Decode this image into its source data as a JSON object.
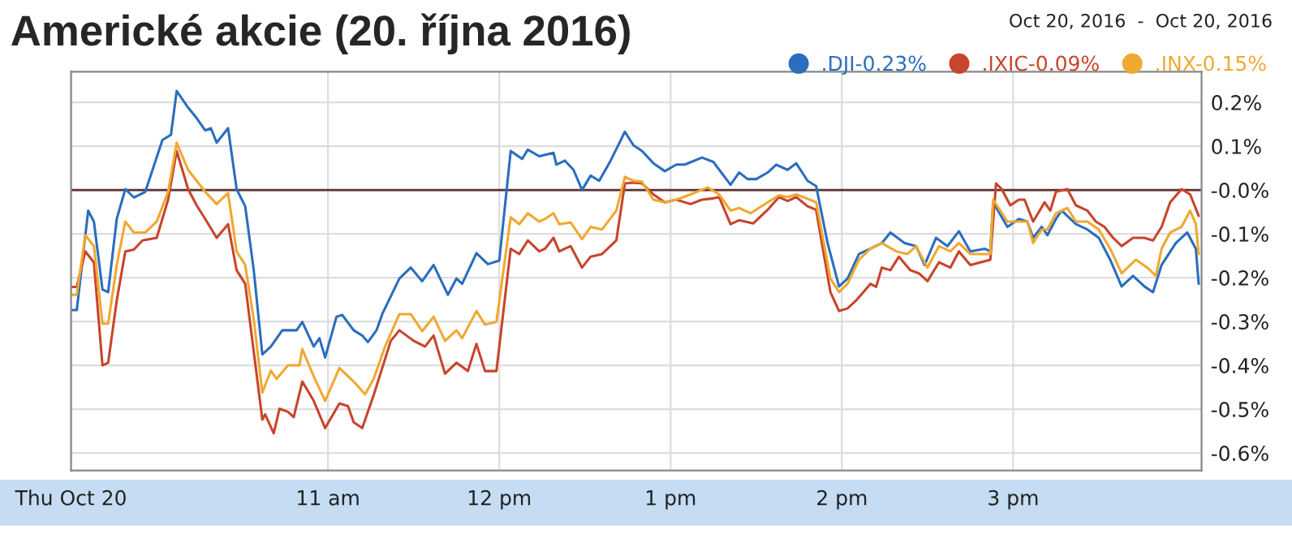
{
  "chart_data": {
    "type": "line",
    "title": "Americké akcie (20. října 2016)",
    "subtitle": "Oct 20, 2016  -  Oct 20, 2016",
    "xlim": [
      "2016-10-20T09:30",
      "2016-10-20T16:06"
    ],
    "xticks": [
      {
        "value": "2016-10-20T09:30",
        "label": "Thu Oct 20"
      },
      {
        "value": "2016-10-20T11:00",
        "label": "11 am"
      },
      {
        "value": "2016-10-20T12:00",
        "label": "12 pm"
      },
      {
        "value": "2016-10-20T13:00",
        "label": "1 pm"
      },
      {
        "value": "2016-10-20T14:00",
        "label": "2 pm"
      },
      {
        "value": "2016-10-20T15:00",
        "label": "3 pm"
      }
    ],
    "ylim": [
      -0.64,
      0.27
    ],
    "yticks": [
      {
        "value": 0.2,
        "label": "0.2%"
      },
      {
        "value": 0.1,
        "label": "0.1%"
      },
      {
        "value": 0,
        "label": "-0.0%"
      },
      {
        "value": -0.1,
        "label": "-0.1%"
      },
      {
        "value": -0.2,
        "label": "-0.2%"
      },
      {
        "value": -0.3,
        "label": "-0.3%"
      },
      {
        "value": -0.4,
        "label": "-0.4%"
      },
      {
        "value": -0.5,
        "label": "-0.5%"
      },
      {
        "value": -0.6,
        "label": "-0.6%"
      }
    ],
    "grid": true,
    "legend": "top right",
    "line_style": "solid",
    "marker": "none",
    "ref_lines": [
      {
        "axis": "y",
        "value": 0,
        "color": "#5a3030"
      }
    ],
    "series": [
      {
        "name": ".DJI-0.23%",
        "color": "#2a6ebd",
        "x": [
          "2016-10-20T09:30",
          "2016-10-20T09:32",
          "2016-10-20T09:36",
          "2016-10-20T09:38",
          "2016-10-20T09:41",
          "2016-10-20T09:43",
          "2016-10-20T09:46",
          "2016-10-20T09:49",
          "2016-10-20T09:52",
          "2016-10-20T09:56",
          "2016-10-20T10:02",
          "2016-10-20T10:05",
          "2016-10-20T10:07",
          "2016-10-20T10:11",
          "2016-10-20T10:14",
          "2016-10-20T10:17",
          "2016-10-20T10:19",
          "2016-10-20T10:21",
          "2016-10-20T10:25",
          "2016-10-20T10:28",
          "2016-10-20T10:31",
          "2016-10-20T10:34",
          "2016-10-20T10:37",
          "2016-10-20T10:40",
          "2016-10-20T10:44",
          "2016-10-20T10:49",
          "2016-10-20T10:51",
          "2016-10-20T10:55",
          "2016-10-20T10:57",
          "2016-10-20T10:59",
          "2016-10-20T11:03",
          "2016-10-20T11:05",
          "2016-10-20T11:09",
          "2016-10-20T11:12",
          "2016-10-20T11:14",
          "2016-10-20T11:17",
          "2016-10-20T11:19",
          "2016-10-20T11:25",
          "2016-10-20T11:29",
          "2016-10-20T11:33",
          "2016-10-20T11:37",
          "2016-10-20T11:42",
          "2016-10-20T11:45",
          "2016-10-20T11:47",
          "2016-10-20T11:52",
          "2016-10-20T11:56",
          "2016-10-20T12:00",
          "2016-10-20T12:04",
          "2016-10-20T12:08",
          "2016-10-20T12:10",
          "2016-10-20T12:14",
          "2016-10-20T12:19",
          "2016-10-20T12:20",
          "2016-10-20T12:23",
          "2016-10-20T12:26",
          "2016-10-20T12:29",
          "2016-10-20T12:32",
          "2016-10-20T12:35",
          "2016-10-20T12:39",
          "2016-10-20T12:44",
          "2016-10-20T12:47",
          "2016-10-20T12:50",
          "2016-10-20T12:54",
          "2016-10-20T12:58",
          "2016-10-20T13:02",
          "2016-10-20T13:05",
          "2016-10-20T13:11",
          "2016-10-20T13:15",
          "2016-10-20T13:21",
          "2016-10-20T13:24",
          "2016-10-20T13:27",
          "2016-10-20T13:30",
          "2016-10-20T13:34",
          "2016-10-20T13:37",
          "2016-10-20T13:41",
          "2016-10-20T13:44",
          "2016-10-20T13:48",
          "2016-10-20T13:51",
          "2016-10-20T13:55",
          "2016-10-20T13:59",
          "2016-10-20T14:02",
          "2016-10-20T14:06",
          "2016-10-20T14:10",
          "2016-10-20T14:14",
          "2016-10-20T14:17",
          "2016-10-20T14:22",
          "2016-10-20T14:26",
          "2016-10-20T14:29",
          "2016-10-20T14:33",
          "2016-10-20T14:37",
          "2016-10-20T14:41",
          "2016-10-20T14:45",
          "2016-10-20T14:50",
          "2016-10-20T14:52",
          "2016-10-20T14:53",
          "2016-10-20T14:58",
          "2016-10-20T15:02",
          "2016-10-20T15:05",
          "2016-10-20T15:07",
          "2016-10-20T15:10",
          "2016-10-20T15:12",
          "2016-10-20T15:15",
          "2016-10-20T15:17",
          "2016-10-20T15:22",
          "2016-10-20T15:26",
          "2016-10-20T15:30",
          "2016-10-20T15:34",
          "2016-10-20T15:38",
          "2016-10-20T15:42",
          "2016-10-20T15:46",
          "2016-10-20T15:49",
          "2016-10-20T15:52",
          "2016-10-20T15:57",
          "2016-10-20T16:01",
          "2016-10-20T16:04",
          "2016-10-20T16:05"
        ],
        "values": [
          -0.274,
          -0.274,
          -0.047,
          -0.072,
          -0.227,
          -0.233,
          -0.066,
          0.002,
          -0.017,
          -0.004,
          0.114,
          0.126,
          0.226,
          0.188,
          0.164,
          0.136,
          0.141,
          0.108,
          0.141,
          0.002,
          -0.037,
          -0.183,
          -0.375,
          -0.357,
          -0.32,
          -0.32,
          -0.301,
          -0.357,
          -0.338,
          -0.382,
          -0.289,
          -0.285,
          -0.32,
          -0.332,
          -0.347,
          -0.32,
          -0.283,
          -0.202,
          -0.177,
          -0.208,
          -0.171,
          -0.239,
          -0.202,
          -0.214,
          -0.144,
          -0.169,
          -0.161,
          0.089,
          0.071,
          0.092,
          0.077,
          0.085,
          0.058,
          0.067,
          0.046,
          0.0,
          0.033,
          0.021,
          0.067,
          0.133,
          0.102,
          0.089,
          0.061,
          0.043,
          0.058,
          0.058,
          0.074,
          0.064,
          0.012,
          0.04,
          0.025,
          0.025,
          0.04,
          0.058,
          0.046,
          0.061,
          0.021,
          0.009,
          -0.121,
          -0.22,
          -0.202,
          -0.146,
          -0.134,
          -0.121,
          -0.097,
          -0.121,
          -0.128,
          -0.171,
          -0.109,
          -0.128,
          -0.094,
          -0.14,
          -0.134,
          -0.14,
          -0.028,
          -0.084,
          -0.066,
          -0.072,
          -0.109,
          -0.084,
          -0.103,
          -0.066,
          -0.047,
          -0.078,
          -0.09,
          -0.109,
          -0.159,
          -0.22,
          -0.196,
          -0.22,
          -0.233,
          -0.171,
          -0.121,
          -0.097,
          -0.134,
          -0.214
        ]
      },
      {
        "name": ".IXIC-0.09%",
        "color": "#c8442c",
        "x": [
          "2016-10-20T09:30",
          "2016-10-20T09:32",
          "2016-10-20T09:35",
          "2016-10-20T09:38",
          "2016-10-20T09:41",
          "2016-10-20T09:43",
          "2016-10-20T09:46",
          "2016-10-20T09:49",
          "2016-10-20T09:52",
          "2016-10-20T09:55",
          "2016-10-20T10:00",
          "2016-10-20T10:04",
          "2016-10-20T10:07",
          "2016-10-20T10:11",
          "2016-10-20T10:14",
          "2016-10-20T10:17",
          "2016-10-20T10:21",
          "2016-10-20T10:25",
          "2016-10-20T10:28",
          "2016-10-20T10:31",
          "2016-10-20T10:34",
          "2016-10-20T10:37",
          "2016-10-20T10:38",
          "2016-10-20T10:41",
          "2016-10-20T10:43",
          "2016-10-20T10:46",
          "2016-10-20T10:48",
          "2016-10-20T10:51",
          "2016-10-20T10:55",
          "2016-10-20T10:59",
          "2016-10-20T11:04",
          "2016-10-20T11:07",
          "2016-10-20T11:09",
          "2016-10-20T11:12",
          "2016-10-20T11:16",
          "2016-10-20T11:22",
          "2016-10-20T11:25",
          "2016-10-20T11:30",
          "2016-10-20T11:34",
          "2016-10-20T11:37",
          "2016-10-20T11:41",
          "2016-10-20T11:45",
          "2016-10-20T11:49",
          "2016-10-20T11:52",
          "2016-10-20T11:55",
          "2016-10-20T11:59",
          "2016-10-20T12:04",
          "2016-10-20T12:07",
          "2016-10-20T12:10",
          "2016-10-20T12:14",
          "2016-10-20T12:16",
          "2016-10-20T12:19",
          "2016-10-20T12:21",
          "2016-10-20T12:25",
          "2016-10-20T12:29",
          "2016-10-20T12:32",
          "2016-10-20T12:36",
          "2016-10-20T12:41",
          "2016-10-20T12:44",
          "2016-10-20T12:47",
          "2016-10-20T12:50",
          "2016-10-20T12:54",
          "2016-10-20T12:58",
          "2016-10-20T13:02",
          "2016-10-20T13:07",
          "2016-10-20T13:11",
          "2016-10-20T13:15",
          "2016-10-20T13:17",
          "2016-10-20T13:21",
          "2016-10-20T13:24",
          "2016-10-20T13:29",
          "2016-10-20T13:34",
          "2016-10-20T13:38",
          "2016-10-20T13:41",
          "2016-10-20T13:44",
          "2016-10-20T13:48",
          "2016-10-20T13:51",
          "2016-10-20T13:53",
          "2016-10-20T13:56",
          "2016-10-20T13:59",
          "2016-10-20T14:02",
          "2016-10-20T14:05",
          "2016-10-20T14:10",
          "2016-10-20T14:12",
          "2016-10-20T14:14",
          "2016-10-20T14:17",
          "2016-10-20T14:20",
          "2016-10-20T14:24",
          "2016-10-20T14:27",
          "2016-10-20T14:30",
          "2016-10-20T14:34",
          "2016-10-20T14:38",
          "2016-10-20T14:41",
          "2016-10-20T14:45",
          "2016-10-20T14:52",
          "2016-10-20T14:54",
          "2016-10-20T14:56",
          "2016-10-20T14:59",
          "2016-10-20T15:02",
          "2016-10-20T15:04",
          "2016-10-20T15:07",
          "2016-10-20T15:11",
          "2016-10-20T15:13",
          "2016-10-20T15:15",
          "2016-10-20T15:19",
          "2016-10-20T15:22",
          "2016-10-20T15:26",
          "2016-10-20T15:29",
          "2016-10-20T15:32",
          "2016-10-20T15:35",
          "2016-10-20T15:38",
          "2016-10-20T15:42",
          "2016-10-20T15:46",
          "2016-10-20T15:49",
          "2016-10-20T15:52",
          "2016-10-20T15:55",
          "2016-10-20T15:59",
          "2016-10-20T16:02",
          "2016-10-20T16:05"
        ],
        "values": [
          -0.221,
          -0.221,
          -0.14,
          -0.165,
          -0.4,
          -0.394,
          -0.252,
          -0.14,
          -0.136,
          -0.115,
          -0.109,
          -0.022,
          0.089,
          0.002,
          -0.035,
          -0.066,
          -0.109,
          -0.078,
          -0.183,
          -0.214,
          -0.369,
          -0.524,
          -0.512,
          -0.555,
          -0.499,
          -0.506,
          -0.518,
          -0.437,
          -0.481,
          -0.543,
          -0.487,
          -0.493,
          -0.53,
          -0.543,
          -0.468,
          -0.344,
          -0.32,
          -0.344,
          -0.357,
          -0.332,
          -0.419,
          -0.394,
          -0.413,
          -0.351,
          -0.413,
          -0.413,
          -0.134,
          -0.146,
          -0.115,
          -0.14,
          -0.134,
          -0.109,
          -0.14,
          -0.128,
          -0.177,
          -0.152,
          -0.146,
          -0.115,
          0.015,
          0.017,
          0.015,
          -0.01,
          -0.028,
          -0.022,
          -0.032,
          -0.022,
          -0.019,
          -0.016,
          -0.078,
          -0.069,
          -0.076,
          -0.045,
          -0.016,
          -0.025,
          -0.016,
          -0.037,
          -0.045,
          -0.121,
          -0.233,
          -0.276,
          -0.27,
          -0.252,
          -0.214,
          -0.221,
          -0.177,
          -0.183,
          -0.152,
          -0.183,
          -0.19,
          -0.208,
          -0.165,
          -0.177,
          -0.14,
          -0.171,
          -0.159,
          0.015,
          0.002,
          -0.035,
          -0.022,
          -0.022,
          -0.072,
          -0.028,
          -0.047,
          -0.004,
          0.002,
          -0.035,
          -0.047,
          -0.072,
          -0.084,
          -0.109,
          -0.128,
          -0.109,
          -0.109,
          -0.115,
          -0.084,
          -0.028,
          0.002,
          -0.01,
          -0.059
        ]
      },
      {
        "name": ".INX-0.15%",
        "color": "#f0a830",
        "x": [
          "2016-10-20T09:30",
          "2016-10-20T09:32",
          "2016-10-20T09:35",
          "2016-10-20T09:38",
          "2016-10-20T09:41",
          "2016-10-20T09:43",
          "2016-10-20T09:46",
          "2016-10-20T09:49",
          "2016-10-20T09:52",
          "2016-10-20T09:56",
          "2016-10-20T10:00",
          "2016-10-20T10:04",
          "2016-10-20T10:07",
          "2016-10-20T10:11",
          "2016-10-20T10:14",
          "2016-10-20T10:17",
          "2016-10-20T10:21",
          "2016-10-20T10:25",
          "2016-10-20T10:28",
          "2016-10-20T10:31",
          "2016-10-20T10:34",
          "2016-10-20T10:37",
          "2016-10-20T10:40",
          "2016-10-20T10:42",
          "2016-10-20T10:46",
          "2016-10-20T10:50",
          "2016-10-20T10:51",
          "2016-10-20T10:55",
          "2016-10-20T10:59",
          "2016-10-20T11:04",
          "2016-10-20T11:09",
          "2016-10-20T11:13",
          "2016-10-20T11:16",
          "2016-10-20T11:20",
          "2016-10-20T11:25",
          "2016-10-20T11:29",
          "2016-10-20T11:33",
          "2016-10-20T11:37",
          "2016-10-20T11:41",
          "2016-10-20T11:45",
          "2016-10-20T11:47",
          "2016-10-20T11:52",
          "2016-10-20T11:55",
          "2016-10-20T11:59",
          "2016-10-20T12:04",
          "2016-10-20T12:07",
          "2016-10-20T12:10",
          "2016-10-20T12:14",
          "2016-10-20T12:16",
          "2016-10-20T12:19",
          "2016-10-20T12:21",
          "2016-10-20T12:25",
          "2016-10-20T12:29",
          "2016-10-20T12:32",
          "2016-10-20T12:36",
          "2016-10-20T12:41",
          "2016-10-20T12:44",
          "2016-10-20T12:47",
          "2016-10-20T12:50",
          "2016-10-20T12:54",
          "2016-10-20T12:58",
          "2016-10-20T13:02",
          "2016-10-20T13:07",
          "2016-10-20T13:13",
          "2016-10-20T13:17",
          "2016-10-20T13:21",
          "2016-10-20T13:24",
          "2016-10-20T13:28",
          "2016-10-20T13:34",
          "2016-10-20T13:38",
          "2016-10-20T13:41",
          "2016-10-20T13:44",
          "2016-10-20T13:48",
          "2016-10-20T13:51",
          "2016-10-20T13:53",
          "2016-10-20T13:56",
          "2016-10-20T13:59",
          "2016-10-20T14:02",
          "2016-10-20T14:06",
          "2016-10-20T14:10",
          "2016-10-20T14:14",
          "2016-10-20T14:19",
          "2016-10-20T14:23",
          "2016-10-20T14:26",
          "2016-10-20T14:30",
          "2016-10-20T14:34",
          "2016-10-20T14:38",
          "2016-10-20T14:41",
          "2016-10-20T14:45",
          "2016-10-20T14:52",
          "2016-10-20T14:53",
          "2016-10-20T14:58",
          "2016-10-20T15:02",
          "2016-10-20T15:05",
          "2016-10-20T15:07",
          "2016-10-20T15:10",
          "2016-10-20T15:12",
          "2016-10-20T15:15",
          "2016-10-20T15:19",
          "2016-10-20T15:22",
          "2016-10-20T15:26",
          "2016-10-20T15:30",
          "2016-10-20T15:34",
          "2016-10-20T15:38",
          "2016-10-20T15:43",
          "2016-10-20T15:47",
          "2016-10-20T15:50",
          "2016-10-20T15:52",
          "2016-10-20T15:55",
          "2016-10-20T15:59",
          "2016-10-20T16:02",
          "2016-10-20T16:04",
          "2016-10-20T16:05"
        ],
        "values": [
          -0.239,
          -0.239,
          -0.103,
          -0.128,
          -0.305,
          -0.305,
          -0.171,
          -0.072,
          -0.097,
          -0.097,
          -0.072,
          -0.004,
          0.108,
          0.046,
          0.021,
          -0.004,
          -0.032,
          -0.007,
          -0.14,
          -0.171,
          -0.295,
          -0.462,
          -0.412,
          -0.431,
          -0.4,
          -0.4,
          -0.363,
          -0.425,
          -0.481,
          -0.406,
          -0.437,
          -0.466,
          -0.431,
          -0.357,
          -0.283,
          -0.283,
          -0.322,
          -0.289,
          -0.344,
          -0.32,
          -0.338,
          -0.276,
          -0.307,
          -0.301,
          -0.062,
          -0.078,
          -0.053,
          -0.072,
          -0.066,
          -0.053,
          -0.078,
          -0.074,
          -0.112,
          -0.084,
          -0.09,
          -0.047,
          0.03,
          0.021,
          0.019,
          -0.022,
          -0.028,
          -0.022,
          -0.01,
          0.006,
          -0.01,
          -0.047,
          -0.041,
          -0.053,
          -0.028,
          -0.012,
          -0.016,
          -0.01,
          -0.02,
          -0.028,
          -0.097,
          -0.202,
          -0.233,
          -0.214,
          -0.159,
          -0.134,
          -0.121,
          -0.14,
          -0.146,
          -0.128,
          -0.177,
          -0.128,
          -0.14,
          -0.121,
          -0.146,
          -0.146,
          -0.022,
          -0.072,
          -0.072,
          -0.072,
          -0.121,
          -0.09,
          -0.09,
          -0.053,
          -0.041,
          -0.072,
          -0.072,
          -0.09,
          -0.134,
          -0.19,
          -0.159,
          -0.177,
          -0.196,
          -0.134,
          -0.097,
          -0.084,
          -0.047,
          -0.078,
          -0.146
        ]
      }
    ]
  }
}
